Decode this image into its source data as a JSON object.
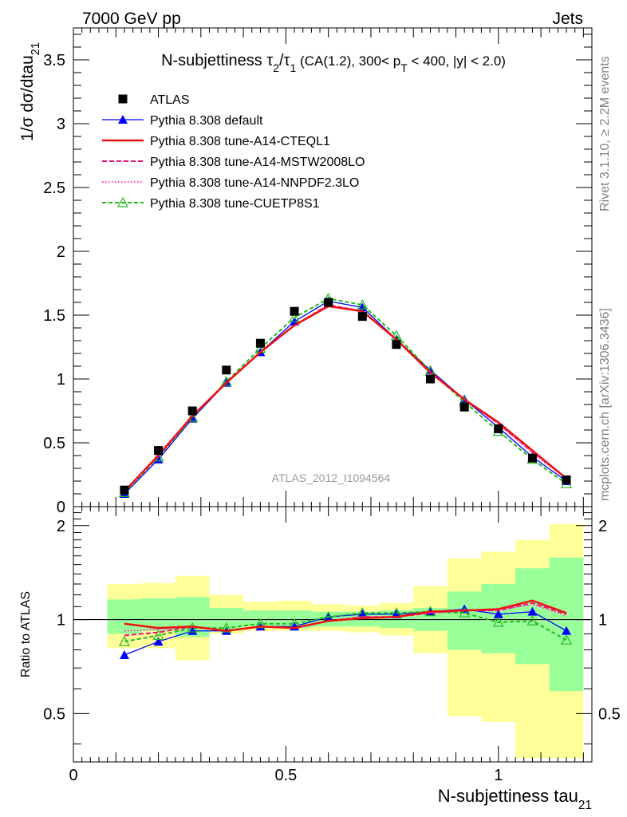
{
  "header": {
    "left": "7000 GeV pp",
    "right": "Jets"
  },
  "side_text": {
    "rivet": "Rivet 3.1.10, ≥ 2.2M events",
    "mcplots": "mcplots.cern.ch [arXiv:1306.3436]"
  },
  "chart_data": [
    {
      "type": "scatter",
      "panel": "main",
      "title_parts": [
        "N-subjettiness ",
        "τ",
        "2",
        "/",
        "τ",
        "1",
        " (CA(1.2), 300< p",
        "T",
        " < 400, |y| < 2.0)"
      ],
      "xlabel_parts": [
        "N-subjettiness tau",
        "21"
      ],
      "ylabel_parts": [
        "1/σ dσ/dtau",
        "21"
      ],
      "watermark": "ATLAS_2012_I1094564",
      "xlim": [
        0,
        1.22
      ],
      "ylim": [
        0,
        3.75
      ],
      "yticks": [
        {
          "v": 0,
          "label": "0"
        },
        {
          "v": 0.5,
          "label": "0.5"
        },
        {
          "v": 1,
          "label": "1"
        },
        {
          "v": 1.5,
          "label": "1.5"
        },
        {
          "v": 2,
          "label": "2"
        },
        {
          "v": 2.5,
          "label": "2.5"
        },
        {
          "v": 3,
          "label": "3"
        },
        {
          "v": 3.5,
          "label": "3.5"
        }
      ],
      "x": [
        0.12,
        0.2,
        0.28,
        0.36,
        0.44,
        0.52,
        0.6,
        0.68,
        0.76,
        0.84,
        0.92,
        1.0,
        1.08,
        1.16
      ],
      "series": [
        {
          "name": "ATLAS",
          "color": "#000000",
          "dash": "",
          "marker": "square",
          "values": [
            0.13,
            0.44,
            0.75,
            1.07,
            1.28,
            1.53,
            1.6,
            1.49,
            1.27,
            1.0,
            0.78,
            0.61,
            0.38,
            0.21
          ]
        },
        {
          "name": "Pythia 8.308 default",
          "color": "#0000ff",
          "dash": "",
          "marker": "triangle",
          "values": [
            0.1,
            0.37,
            0.69,
            0.97,
            1.21,
            1.45,
            1.61,
            1.56,
            1.31,
            1.07,
            0.84,
            0.62,
            0.39,
            0.2
          ]
        },
        {
          "name": "Pythia 8.308 tune-A14-CTEQL1",
          "color": "#ee1111",
          "dash": "",
          "marker": "none",
          "values": [
            0.12,
            0.4,
            0.71,
            0.97,
            1.21,
            1.42,
            1.57,
            1.53,
            1.31,
            1.05,
            0.84,
            0.66,
            0.44,
            0.22
          ]
        },
        {
          "name": "Pythia 8.308 tune-A14-MSTW2008LO",
          "color": "#ee1177",
          "dash": "6,3",
          "marker": "none",
          "values": [
            0.12,
            0.4,
            0.71,
            0.97,
            1.21,
            1.42,
            1.58,
            1.53,
            1.31,
            1.05,
            0.84,
            0.65,
            0.43,
            0.22
          ]
        },
        {
          "name": "Pythia 8.308 tune-A14-NNPDF2.3LO",
          "color": "#ff33cc",
          "dash": "1.5,2.5",
          "marker": "none",
          "values": [
            0.12,
            0.41,
            0.71,
            0.97,
            1.21,
            1.42,
            1.58,
            1.53,
            1.31,
            1.05,
            0.84,
            0.65,
            0.42,
            0.22
          ]
        },
        {
          "name": "Pythia 8.308 tune-CUETP8S1",
          "color": "#22bb22",
          "dash": "5,3",
          "marker": "open-triangle",
          "values": [
            0.11,
            0.39,
            0.7,
            0.98,
            1.24,
            1.48,
            1.63,
            1.58,
            1.34,
            1.06,
            0.82,
            0.59,
            0.37,
            0.18
          ]
        }
      ]
    },
    {
      "type": "line",
      "panel": "ratio",
      "ylabel": "Ratio to ATLAS",
      "xlabel_parts": [
        "N-subjettiness tau",
        "21"
      ],
      "log_scale_y": true,
      "xlim": [
        0,
        1.22
      ],
      "ylim": [
        0.35,
        2.3
      ],
      "yticks": [
        {
          "v": 0.5,
          "label": "0.5"
        },
        {
          "v": 1,
          "label": "1"
        },
        {
          "v": 2,
          "label": "2"
        }
      ],
      "xticks": [
        {
          "v": 0,
          "label": "0"
        },
        {
          "v": 0.5,
          "label": "0.5"
        },
        {
          "v": 1,
          "label": "1"
        }
      ],
      "reference_line": 1,
      "bands": [
        {
          "xlo": 0.08,
          "xhi": 0.16,
          "y1lo": 0.9,
          "y1hi": 1.16,
          "y2lo": 0.81,
          "y2hi": 1.3
        },
        {
          "xlo": 0.16,
          "xhi": 0.24,
          "y1lo": 0.92,
          "y1hi": 1.17,
          "y2lo": 0.81,
          "y2hi": 1.31
        },
        {
          "xlo": 0.24,
          "xhi": 0.32,
          "y1lo": 0.88,
          "y1hi": 1.18,
          "y2lo": 0.74,
          "y2hi": 1.38
        },
        {
          "xlo": 0.32,
          "xhi": 0.4,
          "y1lo": 0.93,
          "y1hi": 1.09,
          "y2lo": 0.9,
          "y2hi": 1.2
        },
        {
          "xlo": 0.4,
          "xhi": 0.48,
          "y1lo": 0.95,
          "y1hi": 1.07,
          "y2lo": 0.92,
          "y2hi": 1.14
        },
        {
          "xlo": 0.48,
          "xhi": 0.56,
          "y1lo": 0.94,
          "y1hi": 1.07,
          "y2lo": 0.92,
          "y2hi": 1.15
        },
        {
          "xlo": 0.56,
          "xhi": 0.64,
          "y1lo": 0.95,
          "y1hi": 1.06,
          "y2lo": 0.92,
          "y2hi": 1.12
        },
        {
          "xlo": 0.64,
          "xhi": 0.72,
          "y1lo": 0.95,
          "y1hi": 1.06,
          "y2lo": 0.91,
          "y2hi": 1.11
        },
        {
          "xlo": 0.72,
          "xhi": 0.8,
          "y1lo": 0.94,
          "y1hi": 1.07,
          "y2lo": 0.89,
          "y2hi": 1.13
        },
        {
          "xlo": 0.8,
          "xhi": 0.88,
          "y1lo": 0.92,
          "y1hi": 1.09,
          "y2lo": 0.78,
          "y2hi": 1.28
        },
        {
          "xlo": 0.88,
          "xhi": 0.96,
          "y1lo": 0.8,
          "y1hi": 1.23,
          "y2lo": 0.49,
          "y2hi": 1.57
        },
        {
          "xlo": 0.96,
          "xhi": 1.04,
          "y1lo": 0.78,
          "y1hi": 1.3,
          "y2lo": 0.47,
          "y2hi": 1.65
        },
        {
          "xlo": 1.04,
          "xhi": 1.12,
          "y1lo": 0.72,
          "y1hi": 1.46,
          "y2lo": 0.36,
          "y2hi": 1.8
        },
        {
          "xlo": 1.12,
          "xhi": 1.2,
          "y1lo": 0.59,
          "y1hi": 1.58,
          "y2lo": 0.36,
          "y2hi": 2.02
        }
      ],
      "band_colors": {
        "inner": "#99ff99",
        "outer": "#ffff99"
      },
      "x": [
        0.12,
        0.2,
        0.28,
        0.36,
        0.44,
        0.52,
        0.6,
        0.68,
        0.76,
        0.84,
        0.92,
        1.0,
        1.08,
        1.16
      ],
      "series": [
        {
          "name": "Pythia 8.308 default",
          "color": "#0000ff",
          "dash": "",
          "marker": "triangle",
          "values": [
            0.77,
            0.85,
            0.92,
            0.92,
            0.95,
            0.95,
            1.02,
            1.04,
            1.04,
            1.06,
            1.08,
            1.04,
            1.06,
            0.92
          ]
        },
        {
          "name": "Pythia 8.308 tune-A14-CTEQL1",
          "color": "#ee1111",
          "dash": "",
          "marker": "none",
          "values": [
            0.97,
            0.94,
            0.95,
            0.92,
            0.95,
            0.94,
            0.99,
            1.01,
            1.02,
            1.06,
            1.07,
            1.08,
            1.15,
            1.05
          ]
        },
        {
          "name": "Pythia 8.308 tune-A14-MSTW2008LO",
          "color": "#ee1177",
          "dash": "6,3",
          "marker": "none",
          "values": [
            0.89,
            0.91,
            0.95,
            0.92,
            0.95,
            0.94,
            0.99,
            1.02,
            1.02,
            1.05,
            1.07,
            1.07,
            1.13,
            1.04
          ]
        },
        {
          "name": "Pythia 8.308 tune-A14-NNPDF2.3LO",
          "color": "#ff33cc",
          "dash": "1.5,2.5",
          "marker": "none",
          "values": [
            0.92,
            0.93,
            0.95,
            0.92,
            0.95,
            0.94,
            0.99,
            1.02,
            1.02,
            1.05,
            1.07,
            1.07,
            1.12,
            1.03
          ]
        },
        {
          "name": "Pythia 8.308 tune-CUETP8S1",
          "color": "#22bb22",
          "dash": "5,3",
          "marker": "open-triangle",
          "values": [
            0.85,
            0.89,
            0.94,
            0.94,
            0.97,
            0.97,
            1.02,
            1.05,
            1.05,
            1.06,
            1.05,
            0.98,
            0.99,
            0.86
          ]
        }
      ]
    }
  ]
}
